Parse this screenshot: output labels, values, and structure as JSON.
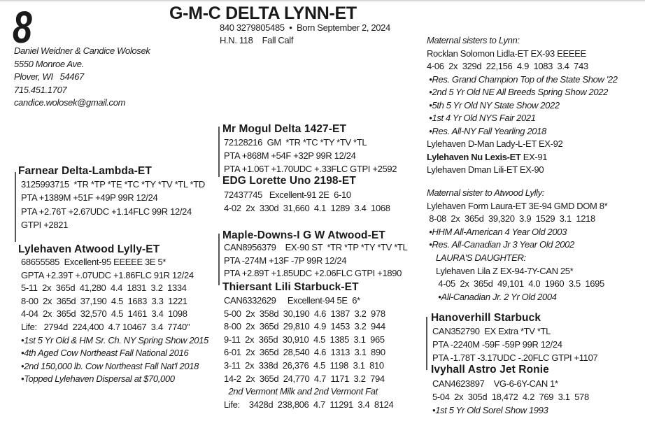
{
  "lot_number": "8",
  "title": "G-M-C DELTA LYNN-ET",
  "registration": [
    "840 3279805485  •  Born September 2, 2024",
    "H.N. 118    Fall Calf"
  ],
  "consignor": [
    "Daniel Weidner & Candice Wolosek",
    "5550 Monroe Ave.",
    "Plover, WI   54467",
    "715.451.1707",
    "candice.wolosek@gmail.com"
  ],
  "sire": {
    "name": "Farnear Delta-Lambda-ET",
    "lines": [
      {
        "text": "3125993715  *TR *TP *TE *TC *TY *TV *TL *TD"
      },
      {
        "text": "PTA +1389M +51F +49P 99R 12/24"
      },
      {
        "text": "PTA +2.76T +2.67UDC +1.14FLC 99R 12/24"
      },
      {
        "text": "GTPI +2821"
      }
    ]
  },
  "dam": {
    "name": "Lylehaven Atwood Lylly-ET",
    "lines": [
      {
        "text": "68655585  Excellent-95 EEEEE 3E 5*"
      },
      {
        "text": "GPTA +2.39T +.07UDC +1.86FLC 91R 12/24"
      },
      {
        "text": "5-11  2x  365d  41,280  4.4  1831  3.2  1334"
      },
      {
        "text": "8-00  2x  365d  37,190  4.5  1683  3.3  1221"
      },
      {
        "text": "4-04  2x  365d  32,570  4.5  1461  3.4  1098"
      },
      {
        "text": "Life:   2794d  224,400  4.7 10467  3.4  7740\""
      },
      {
        "text": "•1st 5 Yr Old & HM Sr. Ch. NY Spring Show 2015",
        "italic": true
      },
      {
        "text": "•4th Aged Cow Northeast Fall National 2016",
        "italic": true
      },
      {
        "text": "•2nd 150,000 lb. Cow Northeast Fall Nat'l 2018",
        "italic": true
      },
      {
        "text": "•Topped Lylehaven Dispersal at $70,000",
        "italic": true
      }
    ]
  },
  "sire_sire": {
    "name": "Mr Mogul Delta 1427-ET",
    "lines": [
      {
        "text": "72128216  GM  *TR *TC *TY *TV *TL"
      },
      {
        "text": "PTA +868M +54F +32P 99R 12/24"
      },
      {
        "text": "PTA +1.06T +1.70UDC +.33FLC GTPI +2592"
      }
    ]
  },
  "sire_dam": {
    "name": "EDG Lorette Uno 2198-ET",
    "lines": [
      {
        "text": "72437745   Excellent-91 2E  6-10"
      },
      {
        "text": "4-02  2x  330d  31,660  4.1  1289  3.4  1068"
      }
    ]
  },
  "dam_sire": {
    "name": "Maple-Downs-I G W Atwood-ET",
    "lines": [
      {
        "text": "CAN8956379    EX-90 ST  *TR *TP *TY *TV *TL"
      },
      {
        "text": "PTA -274M +13F -7P 99R 12/24"
      },
      {
        "text": "PTA +2.89T +1.85UDC +2.06FLC GTPI +1890"
      }
    ]
  },
  "dam_dam": {
    "name": "Thiersant Lili Starbuck-ET",
    "lines": [
      {
        "text": "CAN6332629     Excellent-94 5E  6*"
      },
      {
        "text": "5-00  2x  358d  30,190  4.6  1387  3.2  978"
      },
      {
        "text": "8-00  2x  365d  29,810  4.9  1453  3.2  944"
      },
      {
        "text": "9-11  2x  365d  30,910  4.5  1385  3.1  965"
      },
      {
        "text": "6-01  2x  365d  28,540  4.6  1313  3.1  890"
      },
      {
        "text": "3-11  2x  338d  26,376  4.5  1198  3.1  810"
      },
      {
        "text": "14-2  2x  365d  24,770  4.7  1171  3.2  794"
      },
      {
        "text": "  2nd Vermont Milk and 2nd Vermont Fat",
        "italic": true
      },
      {
        "text": "Life:    3428d  238,806  4.7  11291  3.4  8124"
      }
    ]
  },
  "maternal_sisters": {
    "lines": [
      {
        "text": "Maternal sisters to Lynn:",
        "italic": true
      },
      {
        "text": "Rocklan Solomon Lidla-ET EX-93 EEEEE"
      },
      {
        "text": "4-06  2x  329d  22,156  4.9  1083  3.4  743"
      },
      {
        "text": " •Res. Grand Champion Top of the State Show '22",
        "italic": true
      },
      {
        "text": " •2nd 5 Yr Old NE All Breeds Spring Show 2022",
        "italic": true
      },
      {
        "text": " •5th 5 Yr Old NY State Show 2022",
        "italic": true
      },
      {
        "text": " •1st 4 Yr Old NYS Fair 2021",
        "italic": true
      },
      {
        "text": " •Res. All-NY Fall Yearling 2018",
        "italic": true
      },
      {
        "text": "Lylehaven D-Man Lady-L-ET EX-92"
      },
      {
        "bold": "Lylehaven Nu Lexis-ET",
        "text": " EX-91"
      },
      {
        "text": "Lylehaven Dman Lili-ET EX-90"
      }
    ]
  },
  "maternal_sister_atwood": {
    "lines": [
      {
        "text": "Maternal sister to Atwood Lylly:",
        "italic": true
      },
      {
        "text": "Lylehaven Form Laura-ET 3E-94 GMD DOM 8*"
      },
      {
        "text": " 8-08  2x  365d  39,320  3.9  1529  3.1  1218"
      },
      {
        "text": " •HHM All-American 4 Year Old 2003",
        "italic": true
      },
      {
        "text": " •Res. All-Canadian Jr 3 Year Old 2002",
        "italic": true
      },
      {
        "text": "    LAURA'S DAUGHTER:",
        "italic": true
      },
      {
        "text": "    Lylehaven Lila Z EX-94-7Y-CAN 25*"
      },
      {
        "text": "     4-05  2x  365d  49,101  4.0  1960  3.5  1695"
      },
      {
        "text": "     •All-Canadian Jr. 2 Yr Old 2004",
        "italic": true
      }
    ]
  },
  "dam_dam_sire": {
    "name": "Hanoverhill Starbuck",
    "lines": [
      {
        "text": "CAN352790  EX Extra *TV *TL"
      },
      {
        "text": "PTA -2240M -59F -59P 99R 12/24"
      },
      {
        "text": "PTA -1.78T -3.17UDC -.20FLC GTPI +1107"
      }
    ]
  },
  "dam_dam_dam": {
    "name": "Ivyhall Astro Jet Ronie",
    "lines": [
      {
        "text": "CAN4623897    VG-6-6Y-CAN 1*"
      },
      {
        "text": "5-04  2x  305d  18,472  4.2  769  3.1  578"
      },
      {
        "text": "•1st 5 Yr Old Sorel Show 1993",
        "italic": true
      }
    ]
  }
}
